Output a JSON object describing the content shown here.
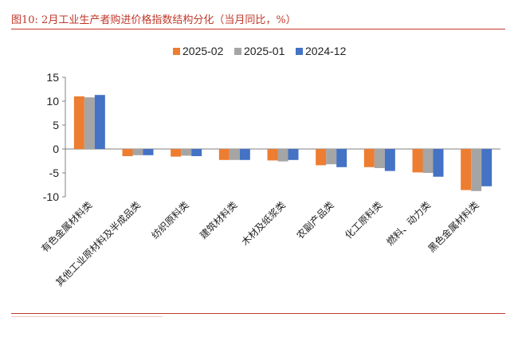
{
  "title": "图10:  2月工业生产者购进价格指数结构分化（当月同比，%）",
  "chart_data": {
    "type": "bar",
    "categories": [
      "有色金属材料类",
      "其他工业原材料及半成品类",
      "纺织原料类",
      "建筑材料类",
      "木材及纸浆类",
      "农副产品类",
      "化工原料类",
      "燃料、动力类",
      "黑色金属材料类"
    ],
    "series": [
      {
        "name": "2025-02",
        "color": "#ed7d31",
        "values": [
          11.0,
          -1.5,
          -1.6,
          -2.3,
          -2.4,
          -3.4,
          -3.8,
          -4.9,
          -8.6
        ]
      },
      {
        "name": "2025-01",
        "color": "#a5a5a5",
        "values": [
          10.8,
          -1.3,
          -1.4,
          -2.3,
          -2.6,
          -3.2,
          -4.0,
          -5.0,
          -8.8
        ]
      },
      {
        "name": "2024-12",
        "color": "#4472c4",
        "values": [
          11.3,
          -1.3,
          -1.5,
          -2.3,
          -2.3,
          -3.8,
          -4.6,
          -5.8,
          -7.8
        ]
      }
    ],
    "ylim": [
      -10,
      15
    ],
    "yticks": [
      15,
      10,
      5,
      0,
      -5,
      -10
    ],
    "legend": "top-center",
    "grid": false
  }
}
